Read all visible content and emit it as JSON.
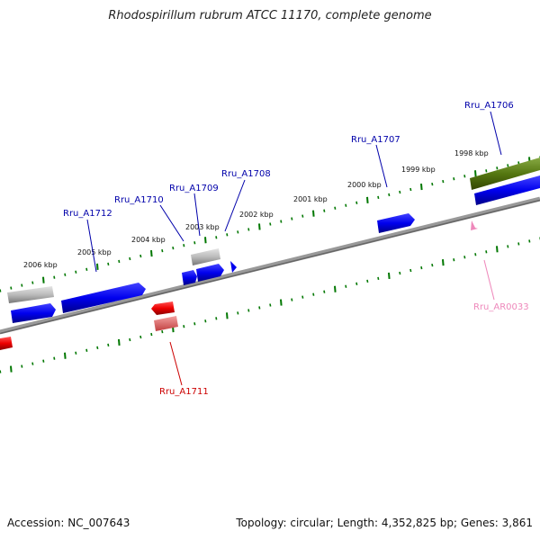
{
  "title": "Rhodospirillum rubrum ATCC 11170, complete genome",
  "footer": {
    "accession": "Accession: NC_007643",
    "summary": "Topology: circular; Length: 4,352,825 bp; Genes: 3,861"
  },
  "ruler_labels": [
    "2006 kbp",
    "2005 kbp",
    "2004 kbp",
    "2003 kbp",
    "2002 kbp",
    "2001 kbp",
    "2000 kbp",
    "1999 kbp",
    "1998 kbp"
  ],
  "genes": [
    {
      "name": "Rru_A1712",
      "color": "#0000aa"
    },
    {
      "name": "Rru_A1710",
      "color": "#0000aa"
    },
    {
      "name": "Rru_A1709",
      "color": "#0000aa"
    },
    {
      "name": "Rru_A1708",
      "color": "#0000aa"
    },
    {
      "name": "Rru_A1707",
      "color": "#0000aa"
    },
    {
      "name": "Rru_A1706",
      "color": "#0000aa"
    },
    {
      "name": "Rru_A1711",
      "color": "#cc0000"
    },
    {
      "name": "Rru_AR0033",
      "color": "#ee88bb"
    }
  ],
  "colors": {
    "backbone": "#777777",
    "ticks": "#007700",
    "cds": "#0000ee",
    "cds_reverse": "#ee0000",
    "pseudo": "#bbbbbb",
    "rrna": "#557711"
  }
}
